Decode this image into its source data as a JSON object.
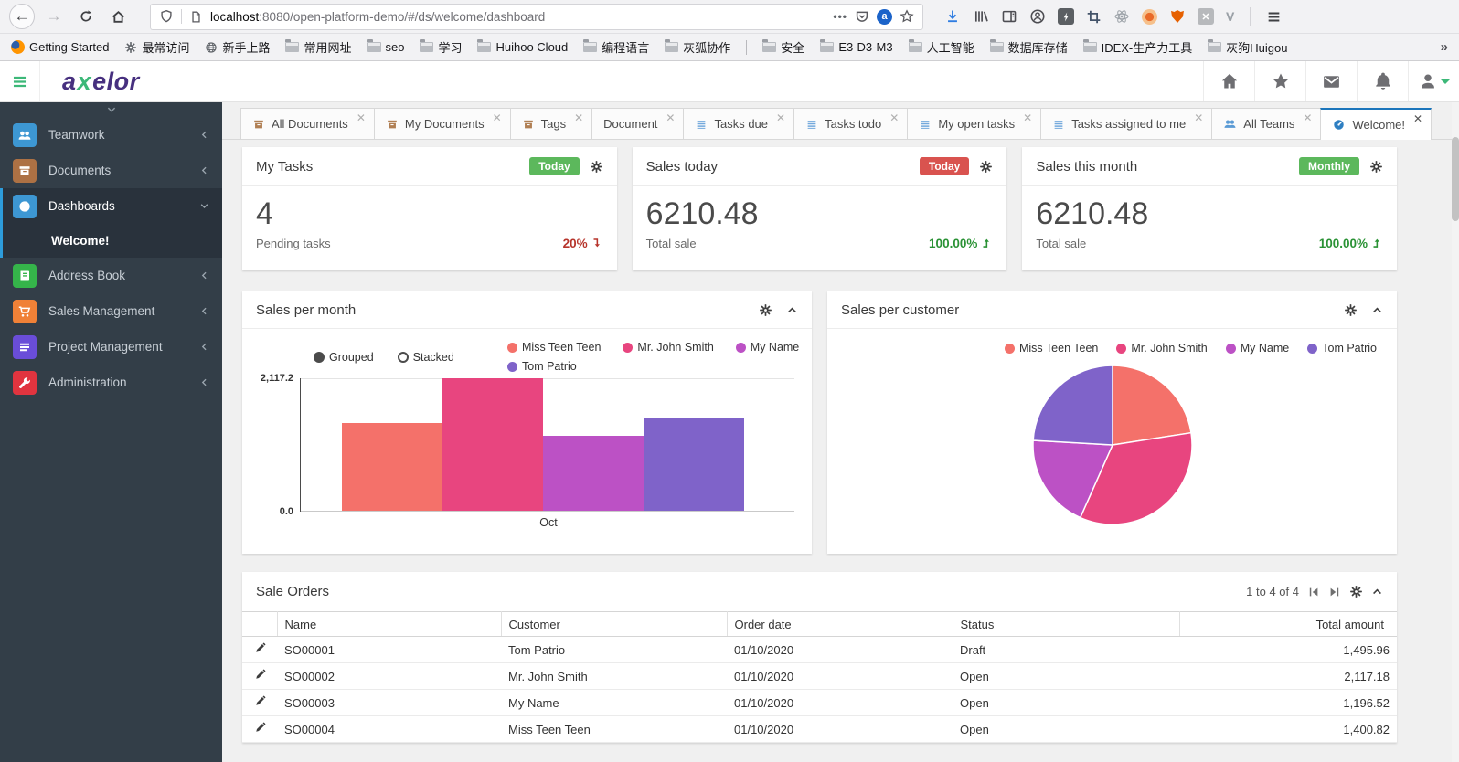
{
  "browser": {
    "url": {
      "domain": "localhost",
      "rest": ":8080/open-platform-demo/#/ds/welcome/dashboard"
    },
    "bookmarks": [
      {
        "icon": "firefox",
        "label": "Getting Started"
      },
      {
        "icon": "gear",
        "label": "最常访问"
      },
      {
        "icon": "globe",
        "label": "新手上路"
      },
      {
        "icon": "folder",
        "label": "常用网址"
      },
      {
        "icon": "folder",
        "label": "seo"
      },
      {
        "icon": "folder",
        "label": "学习"
      },
      {
        "icon": "folder",
        "label": "Huihoo Cloud"
      },
      {
        "icon": "folder",
        "label": "编程语言"
      },
      {
        "icon": "folder",
        "label": "灰狐协作"
      },
      {
        "icon": "folder",
        "label": "安全"
      },
      {
        "icon": "folder",
        "label": "E3-D3-M3"
      },
      {
        "icon": "folder",
        "label": "人工智能"
      },
      {
        "icon": "folder",
        "label": "数据库存储"
      },
      {
        "icon": "folder",
        "label": "IDEX-生产力工具"
      },
      {
        "icon": "folder",
        "label": "灰狗Huigou"
      }
    ],
    "overflow": "»"
  },
  "app": {
    "logo": {
      "a": "a",
      "x": "x",
      "rest": "elor"
    }
  },
  "sidebar": {
    "items": [
      {
        "label": "Teamwork",
        "icon": "users",
        "color": "#3d97d3"
      },
      {
        "label": "Documents",
        "icon": "archive",
        "color": "#ad7144"
      },
      {
        "label": "Dashboards",
        "icon": "dashboard",
        "color": "#3d97d3",
        "expanded": true
      },
      {
        "label": "Address Book",
        "icon": "book",
        "color": "#35b44a"
      },
      {
        "label": "Sales Management",
        "icon": "cart",
        "color": "#f08137"
      },
      {
        "label": "Project Management",
        "icon": "bars",
        "color": "#6a4dd8"
      },
      {
        "label": "Administration",
        "icon": "wrench",
        "color": "#e1343f"
      }
    ],
    "submenu": {
      "label": "Welcome!"
    }
  },
  "tabs": [
    {
      "label": "All Documents",
      "icon": "archive"
    },
    {
      "label": "My Documents",
      "icon": "archive"
    },
    {
      "label": "Tags",
      "icon": "archive"
    },
    {
      "label": "Document",
      "icon": null
    },
    {
      "label": "Tasks due",
      "icon": "list"
    },
    {
      "label": "Tasks todo",
      "icon": "list"
    },
    {
      "label": "My open tasks",
      "icon": "list"
    },
    {
      "label": "Tasks assigned to me",
      "icon": "list"
    },
    {
      "label": "All Teams",
      "icon": "users"
    },
    {
      "label": "Welcome!",
      "icon": "dashboard",
      "active": true
    }
  ],
  "tab_icon_colors": {
    "archive": "#b07f53",
    "list": "#74a9dc",
    "users": "#5b9bd5",
    "dashboard": "#2e7fc2"
  },
  "cards": [
    {
      "title": "My Tasks",
      "badge": "Today",
      "badge_color": "#5cb85c",
      "value": "4",
      "label": "Pending tasks",
      "delta": "20%",
      "delta_dir": "down",
      "delta_color": "#b7352c"
    },
    {
      "title": "Sales today",
      "badge": "Today",
      "badge_color": "#d9534f",
      "value": "6210.48",
      "label": "Total sale",
      "delta": "100.00%",
      "delta_dir": "up",
      "delta_color": "#2a9235"
    },
    {
      "title": "Sales this month",
      "badge": "Monthly",
      "badge_color": "#5cb85c",
      "value": "6210.48",
      "label": "Total sale",
      "delta": "100.00%",
      "delta_dir": "up",
      "delta_color": "#2a9235"
    }
  ],
  "charts": {
    "per_month": {
      "title": "Sales per month",
      "controls": [
        "Grouped",
        "Stacked"
      ],
      "y_top": "2,117.2",
      "y_bottom": "0.0",
      "x_label": "Oct"
    },
    "per_customer": {
      "title": "Sales per customer"
    }
  },
  "chart_data": [
    {
      "type": "bar",
      "title": "Sales per month",
      "categories": [
        "Oct"
      ],
      "mode": "grouped",
      "series": [
        {
          "name": "Miss Teen Teen",
          "values": [
            1400.82
          ],
          "color": "#f4716a"
        },
        {
          "name": "Mr. John Smith",
          "values": [
            2117.18
          ],
          "color": "#e8457f"
        },
        {
          "name": "My Name",
          "values": [
            1196.52
          ],
          "color": "#bc51c5"
        },
        {
          "name": "Tom Patrio",
          "values": [
            1495.96
          ],
          "color": "#7f63c9"
        }
      ],
      "ylim": [
        0,
        2117.2
      ],
      "legend_position": "top",
      "grid": true
    },
    {
      "type": "pie",
      "title": "Sales per customer",
      "labels": [
        "Miss Teen Teen",
        "Mr. John Smith",
        "My Name",
        "Tom Patrio"
      ],
      "values": [
        1400.82,
        2117.18,
        1196.52,
        1495.96
      ],
      "colors": [
        "#f4716a",
        "#e8457f",
        "#bc51c5",
        "#7f63c9"
      ],
      "legend_position": "top"
    }
  ],
  "orders": {
    "title": "Sale Orders",
    "pager": "1 to 4 of 4",
    "columns": [
      "Name",
      "Customer",
      "Order date",
      "Status",
      "Total amount"
    ],
    "rows": [
      {
        "name": "SO00001",
        "customer": "Tom Patrio",
        "date": "01/10/2020",
        "status": "Draft",
        "amount": "1,495.96"
      },
      {
        "name": "SO00002",
        "customer": "Mr. John Smith",
        "date": "01/10/2020",
        "status": "Open",
        "amount": "2,117.18"
      },
      {
        "name": "SO00003",
        "customer": "My Name",
        "date": "01/10/2020",
        "status": "Open",
        "amount": "1,196.52"
      },
      {
        "name": "SO00004",
        "customer": "Miss Teen Teen",
        "date": "01/10/2020",
        "status": "Open",
        "amount": "1,400.82"
      }
    ]
  },
  "colors": {
    "accent_blue": "#1b75bb",
    "sidebar_bg": "#333e48",
    "active_rail": "#2d9cdb"
  }
}
